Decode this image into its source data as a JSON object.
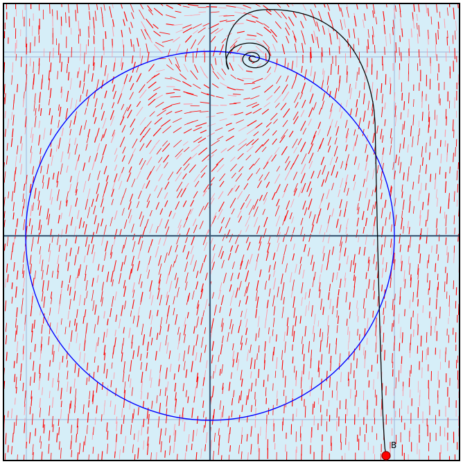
{
  "diagram": {
    "type": "direction-field",
    "point": {
      "label": "B"
    },
    "colors": {
      "background": "#d6eef8",
      "frame": "#000000",
      "axes": "#3c5a78",
      "grid": "#9fb3d8",
      "field": "#ff0000",
      "field_light": "#ff9aa8",
      "circle": "#0000ff",
      "trajectory": "#000000",
      "point_fill": "#ff0000",
      "point_stroke": "#8b0000"
    }
  }
}
